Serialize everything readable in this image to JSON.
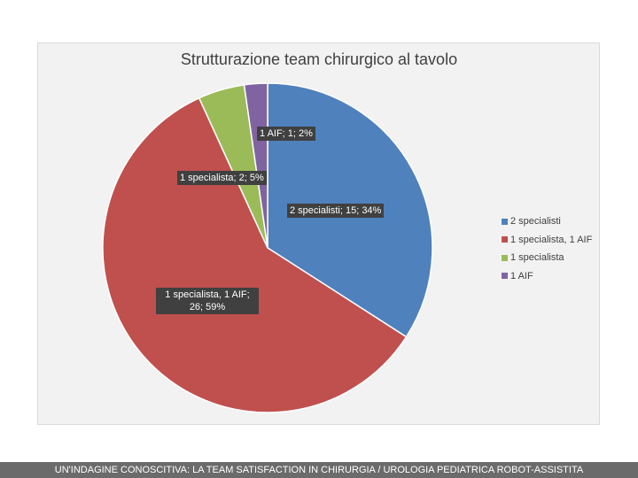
{
  "chart_data": {
    "type": "pie",
    "title": "Strutturazione team chirurgico al tavolo",
    "categories": [
      "2 specialisti",
      "1 specialista, 1 AIF",
      "1 specialista",
      "1 AIF"
    ],
    "values": [
      15,
      26,
      2,
      1
    ],
    "percentages": [
      34,
      59,
      5,
      2
    ],
    "colors": [
      "#4f81bd",
      "#c0504d",
      "#9bbb59",
      "#8064a2"
    ],
    "data_labels": [
      "2 specialisti; 15; 34%",
      "1 specialista, 1 AIF; 26; 59%",
      "1 specialista; 2; 5%",
      "1 AIF; 1; 2%"
    ],
    "legend_position": "right"
  },
  "footer": {
    "text": "UN'INDAGINE CONOSCITIVA: LA TEAM SATISFACTION IN CHIRURGIA / UROLOGIA PEDIATRICA ROBOT-ASSISTITA"
  }
}
